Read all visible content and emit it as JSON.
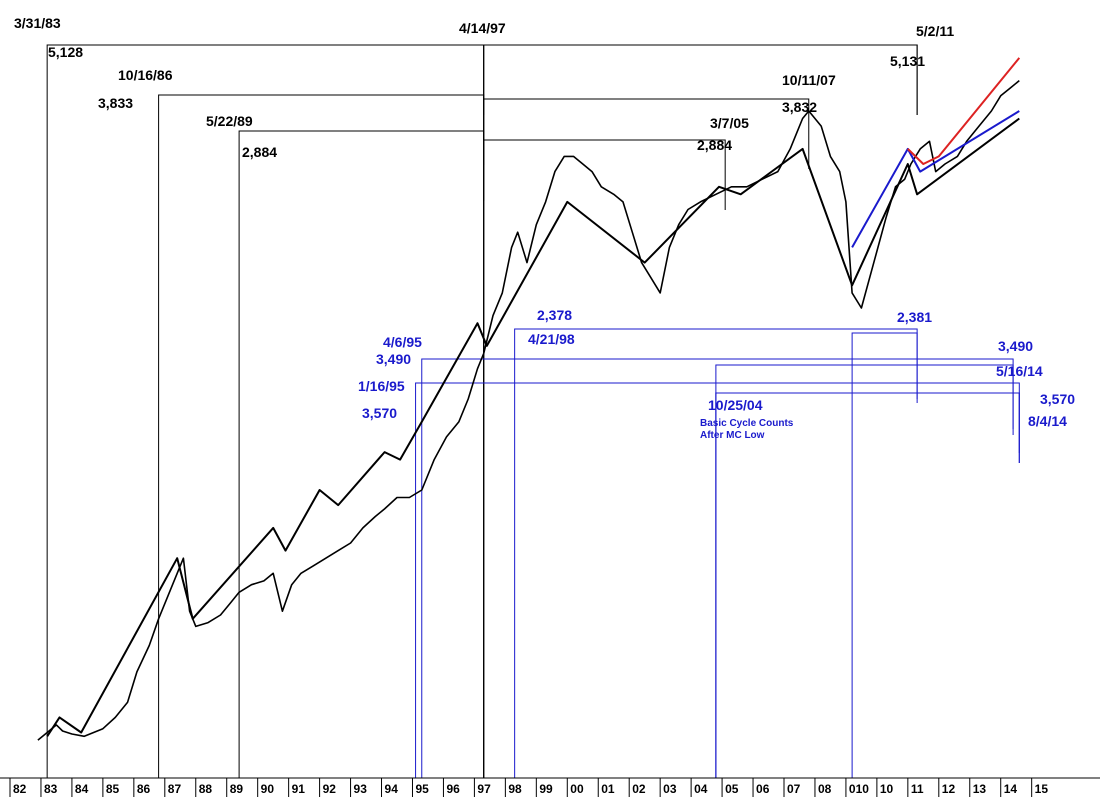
{
  "chart_data": {
    "type": "line",
    "title": "",
    "xlabel": "",
    "ylabel": "",
    "grid": false,
    "x_tick_labels": [
      "82",
      "83",
      "84",
      "85",
      "86",
      "87",
      "88",
      "89",
      "90",
      "91",
      "92",
      "93",
      "94",
      "95",
      "96",
      "97",
      "98",
      "99",
      "00",
      "01",
      "02",
      "03",
      "04",
      "05",
      "06",
      "07",
      "08",
      "010",
      "10",
      "11",
      "12",
      "13",
      "14",
      "15"
    ],
    "colors": {
      "price": "#000000",
      "cycle_black": "#000000",
      "cycle_blue": "#1a1acc",
      "cycle_red": "#dd2222",
      "brackets_black": "#000000",
      "brackets_blue": "#1a1acc"
    },
    "series": [
      {
        "key": "price",
        "type": "line",
        "x": [
          1982.9,
          1983.2,
          1983.5,
          1983.7,
          1984.0,
          1984.4,
          1984.7,
          1985.0,
          1985.4,
          1985.8,
          1986.1,
          1986.5,
          1986.8,
          1987.1,
          1987.4,
          1987.6,
          1987.8,
          1988.0,
          1988.4,
          1988.8,
          1989.1,
          1989.4,
          1989.8,
          1990.2,
          1990.5,
          1990.8,
          1991.1,
          1991.4,
          1991.8,
          1992.2,
          1992.6,
          1993.0,
          1993.4,
          1993.8,
          1994.1,
          1994.5,
          1994.9,
          1995.3,
          1995.7,
          1996.1,
          1996.5,
          1996.8,
          1997.1,
          1997.3,
          1997.6,
          1997.9,
          1998.2,
          1998.4,
          1998.7,
          1999.0,
          1999.3,
          1999.6,
          1999.9,
          2000.2,
          2000.5,
          2000.8,
          2001.1,
          2001.5,
          2001.8,
          2002.1,
          2002.4,
          2002.7,
          2003.0,
          2003.3,
          2003.6,
          2003.9,
          2004.3,
          2004.8,
          2005.3,
          2005.8,
          2006.3,
          2006.8,
          2007.2,
          2007.6,
          2007.8,
          2008.2,
          2008.5,
          2008.8,
          2009.0,
          2009.2,
          2009.5,
          2009.9,
          2010.3,
          2010.6,
          2010.9,
          2011.1,
          2011.4,
          2011.7,
          2011.9,
          2012.2,
          2012.6,
          2012.9,
          2013.3,
          2013.7,
          2014.0,
          2014.3,
          2014.6
        ],
        "y": [
          50,
          60,
          70,
          62,
          58,
          55,
          60,
          65,
          80,
          100,
          140,
          175,
          210,
          240,
          270,
          290,
          220,
          200,
          205,
          215,
          230,
          245,
          255,
          260,
          270,
          220,
          255,
          270,
          280,
          290,
          300,
          310,
          330,
          345,
          355,
          370,
          370,
          380,
          420,
          450,
          470,
          500,
          540,
          560,
          610,
          640,
          700,
          720,
          680,
          730,
          760,
          800,
          820,
          820,
          810,
          800,
          780,
          770,
          760,
          720,
          680,
          660,
          640,
          700,
          730,
          750,
          760,
          770,
          780,
          780,
          790,
          800,
          830,
          870,
          880,
          860,
          820,
          800,
          760,
          640,
          620,
          680,
          740,
          780,
          790,
          810,
          830,
          840,
          800,
          810,
          820,
          840,
          860,
          880,
          900,
          910,
          920
        ]
      },
      {
        "key": "cycle_black",
        "type": "line",
        "x": [
          1983.2,
          1983.6,
          1984.3,
          1987.4,
          1987.9,
          1990.5,
          1990.9,
          1992.0,
          1992.6,
          1994.1,
          1994.6,
          1995.3,
          1997.1,
          1997.4,
          2000.0,
          2002.5,
          2004.9,
          2005.6,
          2007.6,
          2009.2,
          2011.0,
          2011.3,
          2014.6
        ],
        "y": [
          55,
          80,
          60,
          290,
          210,
          330,
          300,
          380,
          360,
          430,
          420,
          470,
          600,
          570,
          760,
          680,
          780,
          770,
          830,
          650,
          810,
          770,
          870
        ]
      },
      {
        "key": "cycle_blue",
        "type": "line",
        "x": [
          2009.2,
          2011.0,
          2011.4,
          2014.6
        ],
        "y": [
          700,
          830,
          800,
          880
        ]
      },
      {
        "key": "cycle_red",
        "type": "line",
        "x": [
          2011.0,
          2011.5,
          2012.0,
          2014.6
        ],
        "y": [
          830,
          810,
          820,
          950
        ]
      }
    ],
    "brackets": [
      {
        "color": "black",
        "top_label": "3/31/83",
        "value_label": "5,128",
        "left_year": 1983.2,
        "right_year": 1997.3
      },
      {
        "color": "black",
        "top_label": "10/16/86",
        "value_label": "3,833",
        "left_year": 1986.8,
        "right_year": 1997.3
      },
      {
        "color": "black",
        "top_label": "5/22/89",
        "value_label": "2,884",
        "left_year": 1989.4,
        "right_year": 1997.3
      },
      {
        "color": "black",
        "top_label": "4/14/97",
        "value_label": "",
        "left_year": 1997.3,
        "right_year": 2011.3
      },
      {
        "color": "black",
        "top_label": "3/7/05",
        "value_label": "2,884",
        "left_year": 1997.3,
        "right_year": 2005.1
      },
      {
        "color": "black",
        "top_label": "10/11/07",
        "value_label": "3,832",
        "left_year": 1997.3,
        "right_year": 2007.8
      },
      {
        "color": "black",
        "top_label": "5/2/11",
        "value_label": "5,131",
        "left_year": 1997.3,
        "right_year": 2011.3
      },
      {
        "color": "blue",
        "top_label": "4/21/98",
        "value_label": "2,378",
        "left_year": 1998.3,
        "right_year": 2011.3
      },
      {
        "color": "blue",
        "top_label": "4/6/95",
        "value_label": "3,490",
        "left_year": 1995.3,
        "right_year": 2014.4
      },
      {
        "color": "blue",
        "top_label": "1/16/95",
        "value_label": "3,570",
        "left_year": 1995.1,
        "right_year": 2014.6
      },
      {
        "color": "blue",
        "top_label": "10/25/04",
        "value_label": "",
        "left_year": 2004.8,
        "right_year": 2014.6
      },
      {
        "color": "blue",
        "top_label": "",
        "value_label": "2,381",
        "left_year": 2009.2,
        "right_year": 2011.3
      },
      {
        "color": "blue",
        "top_label": "5/16/14",
        "value_label": "3,490",
        "left_year": 2004.8,
        "right_year": 2014.4
      },
      {
        "color": "blue",
        "top_label": "8/4/14",
        "value_label": "3,570",
        "left_year": 2004.8,
        "right_year": 2014.6
      }
    ],
    "annotation": {
      "line1": "Basic Cycle Counts",
      "line2": "After MC Low"
    }
  }
}
